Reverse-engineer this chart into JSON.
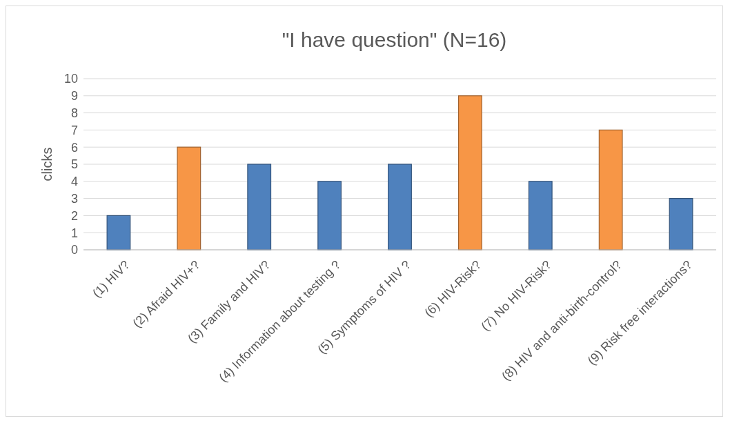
{
  "chart_data": {
    "type": "bar",
    "title": "\"I have question\" (N=16)",
    "ylabel": "clicks",
    "categories": [
      "(1) HIV?",
      "(2) Afraid HIV+?",
      "(3) Family and HIV?",
      "(4) Information about testing ?",
      "(5) Symptoms of HIV ?",
      "(6) HIV-Risk?",
      "(7) No HIV-Risk?",
      "(8) HIV and anti-birth-control?",
      "(9) Risk free interactions?"
    ],
    "values": [
      2,
      6,
      5,
      4,
      5,
      9,
      4,
      7,
      3
    ],
    "colors": [
      "#4f81bd",
      "#f79646",
      "#4f81bd",
      "#4f81bd",
      "#4f81bd",
      "#f79646",
      "#4f81bd",
      "#f79646",
      "#4f81bd"
    ],
    "ylim": [
      0,
      10
    ],
    "yticks": [
      0,
      1,
      2,
      3,
      4,
      5,
      6,
      7,
      8,
      9,
      10
    ],
    "grid": "y"
  }
}
